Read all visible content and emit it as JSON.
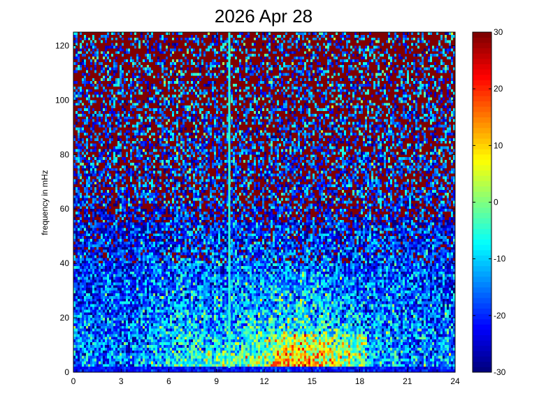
{
  "chart_data": {
    "type": "heatmap",
    "title": "2026 Apr 28",
    "xlabel": "",
    "ylabel": "frequency in mHz",
    "x_ticks": [
      "0",
      "3",
      "6",
      "9",
      "12",
      "15",
      "18",
      "21",
      "24"
    ],
    "y_ticks": [
      "0",
      "20",
      "40",
      "60",
      "80",
      "100",
      "120"
    ],
    "xlim": [
      0,
      24
    ],
    "ylim": [
      0,
      125
    ],
    "colorbar": {
      "colormap": "jet",
      "range": [
        -30,
        30
      ],
      "ticks": [
        "-30",
        "-20",
        "-10",
        "0",
        "10",
        "20",
        "30"
      ]
    },
    "features": [
      {
        "kind": "vertical_line",
        "x": 9.8,
        "value": -5,
        "y_range": [
          0,
          125
        ]
      },
      {
        "kind": "low_frequency_band",
        "y_range": [
          0,
          2
        ],
        "value": -30
      },
      {
        "kind": "hot_region",
        "x_range": [
          12.5,
          18.5
        ],
        "y_range": [
          2,
          14
        ],
        "value": 22
      }
    ]
  }
}
